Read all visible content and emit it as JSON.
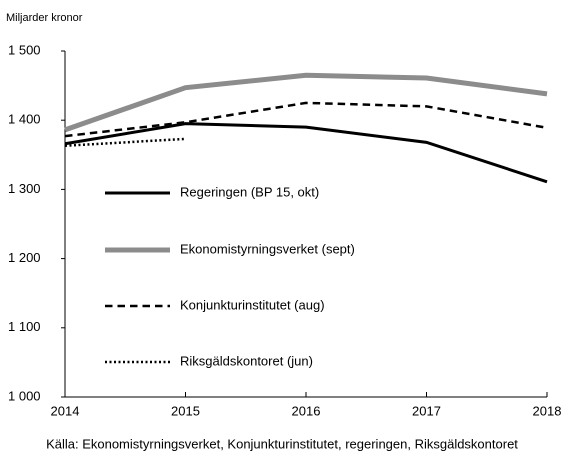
{
  "chart_data": {
    "type": "line",
    "y_label": "Miljarder kronor",
    "source": "Källa: Ekonomistyrningsverket, Konjunkturinstitutet, regeringen, Riksgäldskontoret",
    "x": [
      2014,
      2015,
      2016,
      2017,
      2018
    ],
    "xlim": [
      2014,
      2018
    ],
    "xticks": [
      2014,
      2015,
      2016,
      2017,
      2018
    ],
    "ylim": [
      1000,
      1500
    ],
    "yticks": [
      {
        "value": 1000,
        "label": "1 000"
      },
      {
        "value": 1100,
        "label": "1 100"
      },
      {
        "value": 1200,
        "label": "1 200"
      },
      {
        "value": 1300,
        "label": "1 300"
      },
      {
        "value": 1400,
        "label": "1 400"
      },
      {
        "value": 1500,
        "label": "1 500"
      }
    ],
    "grid": false,
    "series": [
      {
        "name": "Regeringen (BP 15, okt)",
        "color": "#000000",
        "width": 3,
        "dash": "solid",
        "values": [
          1366,
          1395,
          1390,
          1368,
          1311
        ]
      },
      {
        "name": "Ekonomistyrningsverket (sept)",
        "color": "#8c8c8c",
        "width": 5,
        "dash": "solid",
        "values": [
          1386,
          1447,
          1465,
          1461,
          1438
        ]
      },
      {
        "name": "Konjunkturinstitutet (aug)",
        "color": "#000000",
        "width": 2.5,
        "dash": "dashed",
        "values": [
          1377,
          1397,
          1425,
          1420,
          1389
        ]
      },
      {
        "name": "Riksgäldskontoret (jun)",
        "color": "#000000",
        "width": 2.5,
        "dash": "dotted",
        "values": [
          1363,
          1373,
          null,
          null,
          null
        ]
      }
    ]
  }
}
